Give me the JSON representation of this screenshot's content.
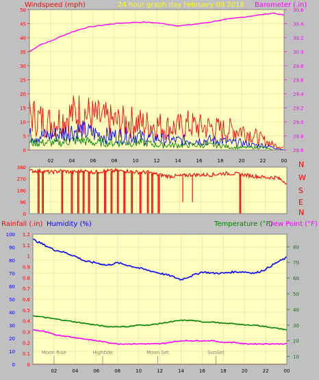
{
  "colors": {
    "background": "#c0c0c0",
    "plot_bg": "#ffffc0",
    "wind_high": "#ff0000",
    "wind_avg": "#0000ff",
    "wind_gust_low": "#008000",
    "barometer": "#ff00ff",
    "direction": "#ff0000",
    "temperature": "#008000",
    "dew_point": "#ff00ff",
    "humidity": "#0000ff",
    "rainfall": "#ff0000",
    "header_yellow": "#ffff00",
    "grid": "#e6d890"
  },
  "header": {
    "title": "24 hour graph day   February 09 2018",
    "left_label": "Windspeed (mph)",
    "right_label": "Barometer (.in)"
  },
  "bottom_labels": {
    "rainfall": "Rainfall (.in)",
    "humidity": "Humidity (%)",
    "temperature": "Temperature (°F)",
    "dew_point": "Dew Point (°F)"
  },
  "direction_letters": [
    "N",
    "W",
    "S",
    "E",
    "N"
  ],
  "x_ticks": [
    "02",
    "04",
    "06",
    "08",
    "10",
    "12",
    "14",
    "16",
    "18",
    "20",
    "22",
    "00"
  ],
  "annotations": [
    {
      "text": "Moon Rise",
      "hour": 2.0
    },
    {
      "text": "Hightide",
      "hour": 6.6
    },
    {
      "text": "Moon Set",
      "hour": 11.8
    },
    {
      "text": "SunSet",
      "hour": 17.3
    }
  ],
  "chart_data": [
    {
      "type": "line",
      "name_ref": "wind_and_barometer",
      "x_unit": "hour",
      "xlim": [
        0,
        24
      ],
      "left_axis": {
        "label": "Windspeed (mph)",
        "ylim": [
          0,
          50
        ],
        "ticks": [
          0,
          5,
          10,
          15,
          20,
          25,
          30,
          35,
          40,
          45,
          50
        ]
      },
      "right_axis": {
        "label": "Barometer (.in)",
        "ylim": [
          28.6,
          30.6
        ],
        "ticks": [
          28.6,
          28.8,
          29.0,
          29.2,
          29.4,
          29.6,
          29.8,
          30.0,
          30.2,
          30.4,
          30.6
        ]
      },
      "series": [
        {
          "key": "barometer",
          "axis": "right",
          "x": [
            0,
            1,
            2,
            3,
            4,
            5,
            6,
            7,
            8,
            9,
            10,
            11,
            12,
            13,
            14,
            15,
            16,
            17,
            18,
            19,
            20,
            21,
            22,
            23,
            24
          ],
          "y": [
            30.0,
            30.1,
            30.15,
            30.22,
            30.28,
            30.33,
            30.36,
            30.38,
            30.4,
            30.41,
            30.42,
            30.42,
            30.41,
            30.39,
            30.37,
            30.38,
            30.4,
            30.42,
            30.45,
            30.47,
            30.49,
            30.51,
            30.53,
            30.55,
            30.52
          ]
        },
        {
          "key": "wind_high",
          "axis": "left",
          "x": [
            0,
            1,
            2,
            3,
            4,
            5,
            6,
            7,
            8,
            9,
            10,
            11,
            12,
            13,
            14,
            15,
            16,
            17,
            18,
            19,
            20,
            21,
            22,
            23,
            24
          ],
          "y": [
            14,
            12,
            11,
            12,
            14,
            15,
            13,
            12,
            11,
            11,
            11,
            10,
            10,
            9,
            9,
            10,
            9,
            9,
            8,
            8,
            8,
            6,
            4,
            2,
            1
          ]
        },
        {
          "key": "wind_avg",
          "axis": "left",
          "x": [
            0,
            1,
            2,
            3,
            4,
            5,
            6,
            7,
            8,
            9,
            10,
            11,
            12,
            13,
            14,
            15,
            16,
            17,
            18,
            19,
            20,
            21,
            22,
            23,
            24
          ],
          "y": [
            6,
            6,
            6,
            7,
            8,
            8,
            7,
            6,
            6,
            6,
            6,
            5,
            5,
            4,
            4,
            4,
            4,
            4,
            4,
            3,
            3,
            2,
            2,
            1,
            0
          ]
        },
        {
          "key": "wind_gust_low",
          "axis": "left",
          "x": [
            0,
            1,
            2,
            3,
            4,
            5,
            6,
            7,
            8,
            9,
            10,
            11,
            12,
            13,
            14,
            15,
            16,
            17,
            18,
            19,
            20,
            21,
            22,
            23,
            24
          ],
          "y": [
            3,
            3,
            3,
            3,
            4,
            4,
            3,
            3,
            3,
            3,
            3,
            3,
            2,
            2,
            2,
            2,
            2,
            2,
            2,
            1,
            1,
            1,
            1,
            0,
            0
          ]
        }
      ]
    },
    {
      "type": "line",
      "name_ref": "wind_direction",
      "x_unit": "hour",
      "xlim": [
        0,
        24
      ],
      "ylim": [
        0,
        360
      ],
      "ticks": [
        0,
        90,
        180,
        270,
        360
      ],
      "series": [
        {
          "key": "direction",
          "x": [
            0,
            1,
            2,
            3,
            4,
            5,
            6,
            7,
            8,
            9,
            10,
            11,
            12,
            13,
            14,
            15,
            16,
            17,
            18,
            19,
            20,
            21,
            22,
            23,
            24
          ],
          "y": [
            330,
            330,
            320,
            330,
            320,
            330,
            320,
            330,
            330,
            330,
            320,
            320,
            300,
            290,
            290,
            300,
            300,
            300,
            310,
            310,
            300,
            290,
            280,
            280,
            240
          ]
        }
      ],
      "drops_to_zero_hours": [
        0.8,
        1.2,
        3.0,
        3.9,
        4.5,
        5.0,
        5.5,
        6.3,
        7.0,
        7.6,
        8.2,
        8.8,
        9.5,
        10.3,
        11.0,
        11.4,
        12.0,
        19.6
      ],
      "notch_hours": [
        14.3,
        15.2
      ]
    },
    {
      "type": "line",
      "name_ref": "temp_humidity_rain",
      "x_unit": "hour",
      "xlim": [
        0,
        24
      ],
      "rain_axis": {
        "label": "Rainfall (.in)",
        "ylim": [
          0,
          1.2
        ],
        "ticks": [
          0,
          0.1,
          0.2,
          0.3,
          0.4,
          0.5,
          0.6,
          0.7,
          0.8,
          0.9,
          1.0,
          1.1,
          1.2
        ]
      },
      "humidity_axis": {
        "label": "Humidity (%)",
        "ylim": [
          0,
          100
        ],
        "ticks": [
          0,
          10,
          20,
          30,
          40,
          50,
          60,
          70,
          80,
          90,
          100
        ]
      },
      "temp_axis": {
        "label": "Temperature (°F)",
        "ylim": [
          5,
          88
        ],
        "ticks": [
          10,
          20,
          30,
          40,
          50,
          60,
          70,
          80
        ]
      },
      "series": [
        {
          "key": "humidity",
          "axis": "humidity",
          "x": [
            0,
            1,
            2,
            3,
            4,
            5,
            6,
            7,
            8,
            9,
            10,
            11,
            12,
            13,
            14,
            15,
            16,
            17,
            18,
            19,
            20,
            21,
            22,
            23,
            24
          ],
          "y": [
            96,
            92,
            88,
            86,
            83,
            79,
            78,
            76,
            78,
            76,
            74,
            72,
            70,
            68,
            65,
            68,
            71,
            70,
            70,
            71,
            71,
            70,
            73,
            78,
            82
          ]
        },
        {
          "key": "temperature",
          "axis": "temp",
          "x": [
            0,
            1,
            2,
            3,
            4,
            5,
            6,
            7,
            8,
            9,
            10,
            11,
            12,
            13,
            14,
            15,
            16,
            17,
            18,
            19,
            20,
            21,
            22,
            23,
            24
          ],
          "y": [
            36,
            35,
            34,
            33,
            32,
            31,
            30,
            29,
            29,
            29,
            30,
            30,
            31,
            32,
            33,
            33,
            32,
            32,
            31,
            31,
            30,
            30,
            29,
            28,
            27
          ]
        },
        {
          "key": "dew_point",
          "axis": "temp",
          "x": [
            0,
            1,
            2,
            3,
            4,
            5,
            6,
            7,
            8,
            9,
            10,
            11,
            12,
            13,
            14,
            15,
            16,
            17,
            18,
            19,
            20,
            21,
            22,
            23,
            24
          ],
          "y": [
            27,
            26,
            24,
            23,
            22,
            21,
            20,
            19,
            18,
            18,
            18,
            18,
            18,
            19,
            20,
            20,
            20,
            20,
            19,
            19,
            18,
            18,
            18,
            18,
            18
          ]
        },
        {
          "key": "rainfall",
          "axis": "rain",
          "x": [
            0,
            24
          ],
          "y": [
            0,
            0
          ]
        }
      ]
    }
  ]
}
